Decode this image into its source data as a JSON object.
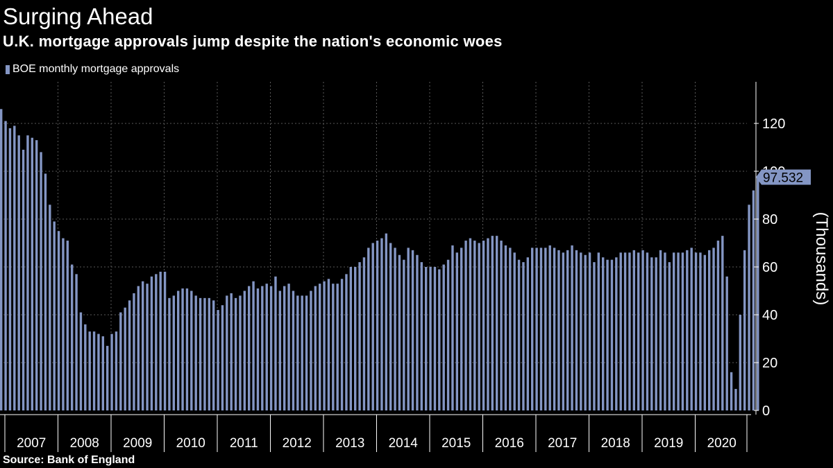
{
  "header": {
    "title": "Surging Ahead",
    "subtitle": "U.K. mortgage approvals jump despite the nation's economic woes"
  },
  "footer": {
    "source": "Source:  Bank of England"
  },
  "colors": {
    "background": "#000000",
    "bar": "#8496c4",
    "grid": "#5a5a5a",
    "callout": "#8496c4"
  },
  "chart_data": {
    "type": "bar",
    "title": "Surging Ahead",
    "subtitle": "U.K. mortgage approvals jump despite the nation's economic woes",
    "ylabel": "(Thousands)",
    "ylim": [
      0,
      135
    ],
    "yticks": [
      0,
      20,
      40,
      60,
      80,
      100,
      120
    ],
    "grid": true,
    "legend_position": "top-left",
    "x_start": "2007-01",
    "x_end": "2020-07",
    "year_labels": [
      "2007",
      "2008",
      "2009",
      "2010",
      "2011",
      "2012",
      "2013",
      "2014",
      "2015",
      "2016",
      "2017",
      "2018",
      "2019",
      "2020"
    ],
    "callout": "97.532",
    "series": [
      {
        "name": "BOE monthly mortgage approvals",
        "values": [
          126,
          121,
          118,
          119,
          115,
          109,
          115,
          114,
          113,
          108,
          99,
          86,
          79,
          75,
          72,
          71,
          61,
          57,
          41,
          36,
          33,
          33,
          32,
          31,
          27,
          32,
          33,
          41,
          43,
          46,
          49,
          52,
          54,
          53,
          56,
          57,
          58,
          58,
          47,
          48,
          50,
          51,
          51,
          50,
          48,
          47,
          47,
          47,
          46,
          42,
          44,
          48,
          49,
          47,
          48,
          50,
          52,
          54,
          51,
          52,
          53,
          52,
          56,
          50,
          52,
          53,
          50,
          48,
          48,
          48,
          50,
          52,
          53,
          54,
          55,
          53,
          53,
          55,
          57,
          60,
          60,
          62,
          64,
          68,
          70,
          71,
          72,
          74,
          70,
          68,
          65,
          63,
          68,
          67,
          65,
          62,
          60,
          60,
          60,
          59,
          61,
          63,
          69,
          66,
          68,
          71,
          72,
          71,
          70,
          71,
          72,
          73,
          73,
          71,
          69,
          68,
          66,
          63,
          62,
          64,
          68,
          68,
          68,
          68,
          69,
          68,
          67,
          66,
          67,
          69,
          67,
          66,
          65,
          66,
          62,
          66,
          64,
          63,
          63,
          64,
          66,
          66,
          66,
          67,
          66,
          67,
          66,
          64,
          64,
          67,
          66,
          62,
          66,
          66,
          66,
          67,
          68,
          66,
          66,
          65,
          67,
          68,
          71,
          73,
          56,
          16,
          9,
          40,
          67,
          86,
          92,
          97.532
        ]
      }
    ]
  }
}
